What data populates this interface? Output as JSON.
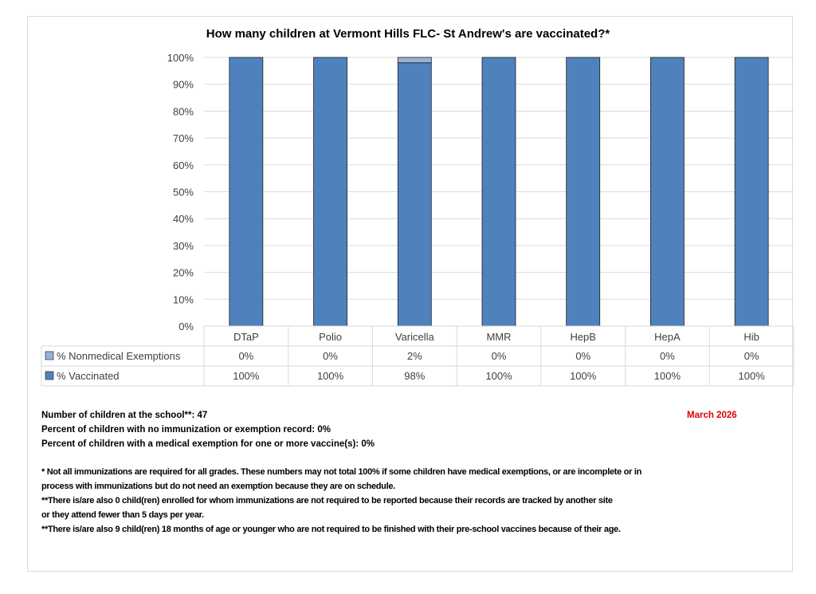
{
  "chart_data": {
    "type": "bar",
    "stacked": true,
    "title": "How many children at Vermont Hills FLC- St Andrew's are vaccinated?*",
    "categories": [
      "DTaP",
      "Polio",
      "Varicella",
      "MMR",
      "HepB",
      "HepA",
      "Hib"
    ],
    "series": [
      {
        "name": "% Vaccinated",
        "values": [
          100,
          100,
          98,
          100,
          100,
          100,
          100
        ],
        "labels": [
          "100%",
          "100%",
          "98%",
          "100%",
          "100%",
          "100%",
          "100%"
        ],
        "color": "#4f81bd"
      },
      {
        "name": "% Nonmedical Exemptions",
        "values": [
          0,
          0,
          2,
          0,
          0,
          0,
          0
        ],
        "labels": [
          "0%",
          "0%",
          "2%",
          "0%",
          "0%",
          "0%",
          "0%"
        ],
        "color": "#95b3d7"
      }
    ],
    "ylim": [
      0,
      100
    ],
    "yticks": [
      "0%",
      "10%",
      "20%",
      "30%",
      "40%",
      "50%",
      "60%",
      "70%",
      "80%",
      "90%",
      "100%"
    ],
    "grid": true,
    "legend": "data-table"
  },
  "info": {
    "children_label": "Number of children at the school**: ",
    "children_value": "47",
    "no_record_label": "Percent of children with no immunization or exemption record: ",
    "no_record_value": "0%",
    "medical_label": "Percent of children with a medical exemption for one or more vaccine(s): ",
    "medical_value": "0%",
    "date": "March 2026"
  },
  "notes": [
    "* Not all immunizations are required for all grades. These numbers may not total 100% if some children have medical exemptions, or are incomplete or in",
    "process with immunizations but do not need an exemption because they are on schedule.",
    "**There is/are also     0     child(ren) enrolled for whom immunizations are not required to be reported because their records are tracked by another site",
    "or they attend fewer than 5 days per year.",
    "**There is/are also     9     child(ren) 18 months of age or younger who are not required to be finished with their pre-school vaccines because of their age."
  ]
}
